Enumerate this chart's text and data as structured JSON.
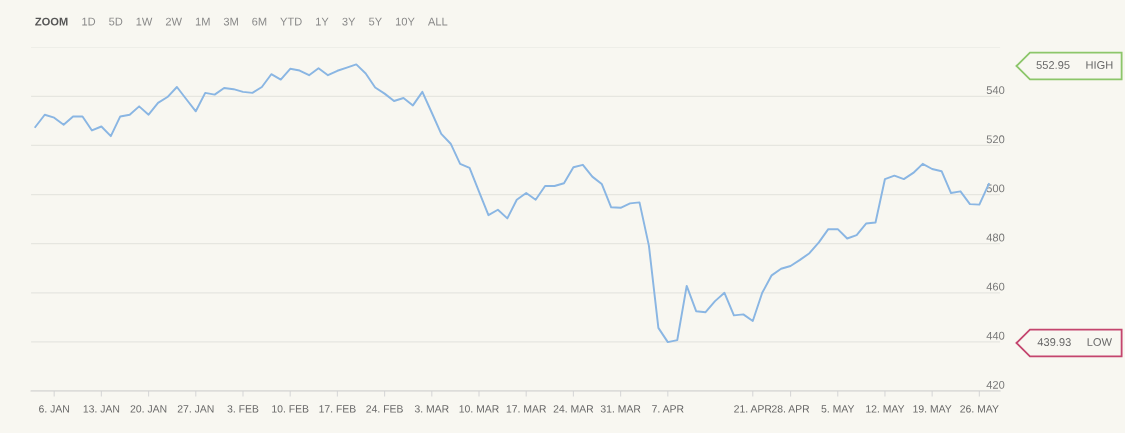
{
  "chart_data": {
    "type": "line",
    "categories": [
      null,
      null,
      "6. JAN",
      null,
      null,
      null,
      null,
      "13. JAN",
      null,
      null,
      null,
      null,
      "20. JAN",
      null,
      null,
      null,
      null,
      "27. JAN",
      null,
      null,
      null,
      null,
      "3. FEB",
      null,
      null,
      null,
      null,
      "10. FEB",
      null,
      null,
      null,
      null,
      "17. FEB",
      null,
      null,
      null,
      null,
      "24. FEB",
      null,
      null,
      null,
      null,
      "3. MAR",
      null,
      null,
      null,
      null,
      "10. MAR",
      null,
      null,
      null,
      null,
      "17. MAR",
      null,
      null,
      null,
      null,
      "24. MAR",
      null,
      null,
      null,
      null,
      "31. MAR",
      null,
      null,
      null,
      null,
      "7. APR",
      null,
      null,
      null,
      null,
      null,
      null,
      null,
      null,
      "21. APR",
      null,
      null,
      null,
      "28. APR",
      null,
      null,
      null,
      null,
      "5. MAY",
      null,
      null,
      null,
      null,
      "12. MAY",
      null,
      null,
      null,
      null,
      "19. MAY",
      null,
      null,
      null,
      null,
      "26. MAY",
      null
    ],
    "series": [
      {
        "color": "#8ab6e3",
        "values": [
          527.5,
          532.5,
          531.3,
          528.4,
          531.8,
          531.8,
          526.1,
          527.7,
          523.8,
          531.8,
          532.5,
          535.9,
          532.5,
          537.3,
          539.7,
          543.8,
          538.8,
          533.9,
          541.4,
          540.7,
          543.4,
          542.9,
          541.8,
          541.4,
          543.8,
          549.0,
          546.8,
          551.2,
          550.5,
          548.6,
          551.4,
          548.6,
          550.4,
          551.7,
          553.0,
          549.3,
          543.6,
          541.1,
          538.1,
          539.3,
          536.3,
          541.8,
          533.3,
          524.7,
          520.7,
          512.5,
          510.9,
          501.2,
          491.6,
          493.8,
          490.3,
          497.9,
          500.6,
          497.9,
          503.5,
          503.5,
          504.6,
          511.1,
          512.1,
          507.3,
          504.3,
          494.8,
          494.6,
          496.4,
          496.8,
          479.1,
          445.7,
          439.9,
          440.7,
          462.8,
          452.5,
          452.1,
          456.6,
          460.0,
          450.8,
          451.2,
          448.5,
          460.0,
          467.1,
          469.8,
          470.9,
          473.4,
          476.1,
          480.5,
          485.9,
          485.9,
          482.1,
          483.5,
          488.2,
          488.6,
          506.3,
          507.7,
          506.3,
          508.8,
          512.5,
          510.4,
          509.5,
          500.6,
          501.3,
          496.1,
          495.9,
          504.3
        ]
      }
    ],
    "ylim": [
      420,
      560
    ],
    "yticks": [
      420,
      440,
      460,
      480,
      500,
      520,
      540,
      {
        "value": 560,
        "label": null
      }
    ],
    "grid": "y",
    "marker": "none",
    "line_style": "solid",
    "annotations": [
      "552.95 HIGH",
      "439.93 LOW",
      "ZOOM",
      "1D",
      "5D",
      "1W",
      "2W",
      "1M",
      "3M",
      "6M",
      "YTD",
      "1Y",
      "3Y",
      "5Y",
      "10Y",
      "ALL"
    ]
  }
}
